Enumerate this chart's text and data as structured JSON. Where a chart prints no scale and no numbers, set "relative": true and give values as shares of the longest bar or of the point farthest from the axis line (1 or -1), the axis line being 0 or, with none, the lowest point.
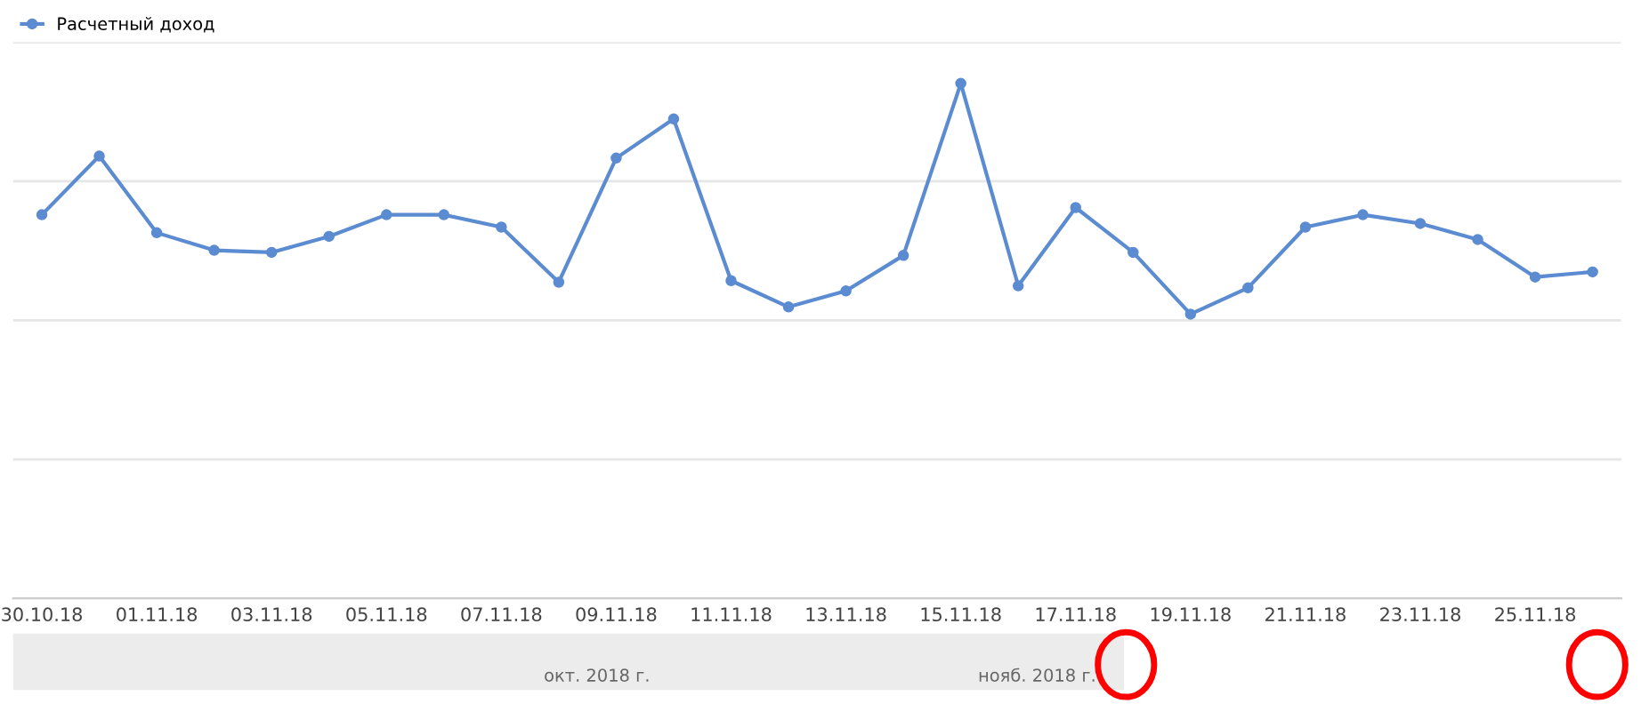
{
  "chart_data": {
    "type": "line",
    "relative": true,
    "categories": [
      "30.10.18",
      null,
      "01.11.18",
      null,
      "03.11.18",
      null,
      "05.11.18",
      null,
      "07.11.18",
      null,
      "09.11.18",
      null,
      "11.11.18",
      null,
      "13.11.18",
      null,
      "15.11.18",
      null,
      "17.11.18",
      null,
      "19.11.18",
      null,
      "21.11.18",
      null,
      "23.11.18",
      null,
      "25.11.18",
      null
    ],
    "series": [
      {
        "name": "Расчетный доход",
        "color": "#5b8bd0",
        "values": [
          0.745,
          0.859,
          0.71,
          0.676,
          0.672,
          0.703,
          0.745,
          0.745,
          0.721,
          0.614,
          0.855,
          0.931,
          0.617,
          0.566,
          0.597,
          0.666,
          1,
          0.607,
          0.759,
          0.672,
          0.552,
          0.603,
          0.721,
          0.745,
          0.728,
          0.697,
          0.624,
          0.634
        ]
      }
    ],
    "marker": "circle",
    "grid": "y",
    "legend": "top left",
    "annotations": [
      "окт. 2018 г.",
      "нояб. 2018 г."
    ]
  }
}
